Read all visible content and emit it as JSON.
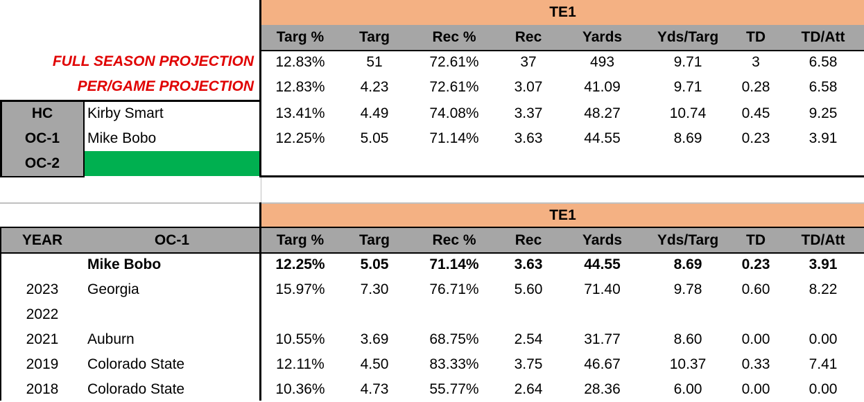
{
  "top": {
    "band_title": "TE1",
    "columns": [
      "Targ %",
      "Targ",
      "Rec %",
      "Rec",
      "Yards",
      "Yds/Targ",
      "TD",
      "TD/Att"
    ],
    "projections": [
      {
        "label": "FULL SEASON PROJECTION",
        "values": [
          "12.83%",
          "51",
          "72.61%",
          "37",
          "493",
          "9.71",
          "3",
          "6.58"
        ]
      },
      {
        "label": "PER/GAME PROJECTION",
        "values": [
          "12.83%",
          "4.23",
          "72.61%",
          "3.07",
          "41.09",
          "9.71",
          "0.28",
          "6.58"
        ]
      }
    ],
    "coaches": [
      {
        "role": "HC",
        "name": "Kirby Smart",
        "values": [
          "13.41%",
          "4.49",
          "74.08%",
          "3.37",
          "48.27",
          "10.74",
          "0.45",
          "9.25"
        ]
      },
      {
        "role": "OC-1",
        "name": "Mike Bobo",
        "values": [
          "12.25%",
          "5.05",
          "71.14%",
          "3.63",
          "44.55",
          "8.69",
          "0.23",
          "3.91"
        ]
      },
      {
        "role": "OC-2",
        "name": "",
        "values": [
          "",
          "",
          "",
          "",
          "",
          "",
          "",
          ""
        ]
      }
    ]
  },
  "bottom": {
    "band_title": "TE1",
    "year_header": "YEAR",
    "oc_header": "OC-1",
    "columns": [
      "Targ %",
      "Targ",
      "Rec %",
      "Rec",
      "Yards",
      "Yds/Targ",
      "TD",
      "TD/Att"
    ],
    "rows": [
      {
        "year": "",
        "team": "Mike Bobo",
        "bold": true,
        "values": [
          "12.25%",
          "5.05",
          "71.14%",
          "3.63",
          "44.55",
          "8.69",
          "0.23",
          "3.91"
        ]
      },
      {
        "year": "2023",
        "team": "Georgia",
        "bold": false,
        "values": [
          "15.97%",
          "7.30",
          "76.71%",
          "5.60",
          "71.40",
          "9.78",
          "0.60",
          "8.22"
        ]
      },
      {
        "year": "2022",
        "team": "",
        "bold": false,
        "values": [
          "",
          "",
          "",
          "",
          "",
          "",
          "",
          ""
        ]
      },
      {
        "year": "2021",
        "team": "Auburn",
        "bold": false,
        "values": [
          "10.55%",
          "3.69",
          "68.75%",
          "2.54",
          "31.77",
          "8.60",
          "0.00",
          "0.00"
        ]
      },
      {
        "year": "2019",
        "team": "Colorado State",
        "bold": false,
        "values": [
          "12.11%",
          "4.50",
          "83.33%",
          "3.75",
          "46.67",
          "10.37",
          "0.33",
          "7.41"
        ]
      },
      {
        "year": "2018",
        "team": "Colorado State",
        "bold": false,
        "values": [
          "10.36%",
          "4.73",
          "55.77%",
          "2.64",
          "28.36",
          "6.00",
          "0.00",
          "0.00"
        ]
      }
    ]
  },
  "colors": {
    "band": "#f4b183",
    "header_gray": "#a6a6a6",
    "oc2_fill": "#00b050",
    "projection_text": "#e00000"
  }
}
